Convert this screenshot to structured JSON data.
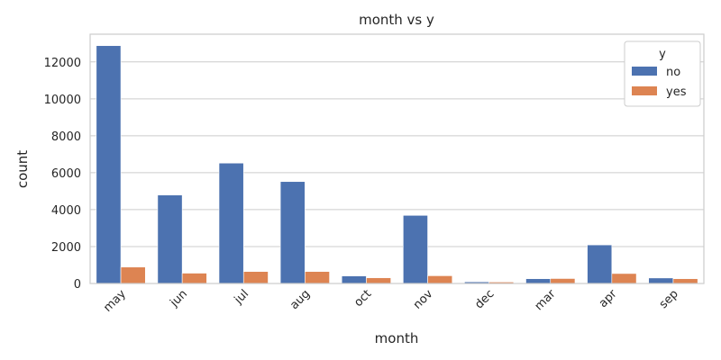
{
  "chart_data": {
    "type": "bar",
    "title": "month vs y",
    "xlabel": "month",
    "ylabel": "count",
    "categories": [
      "may",
      "jun",
      "jul",
      "aug",
      "oct",
      "nov",
      "dec",
      "mar",
      "apr",
      "sep"
    ],
    "series": [
      {
        "name": "no",
        "color": "#4c72b0",
        "values": [
          12880,
          4790,
          6520,
          5520,
          410,
          3690,
          90,
          260,
          2090,
          300
        ]
      },
      {
        "name": "yes",
        "color": "#dd8452",
        "values": [
          890,
          560,
          650,
          650,
          310,
          420,
          80,
          270,
          540,
          260
        ]
      }
    ],
    "ylim": [
      0,
      13500
    ],
    "yticks": [
      0,
      2000,
      4000,
      6000,
      8000,
      10000,
      12000
    ],
    "ytick_labels": [
      "0",
      "2000",
      "4000",
      "6000",
      "8000",
      "10000",
      "12000"
    ],
    "grid": true,
    "legend": {
      "title": "y",
      "placement": "top-right"
    }
  }
}
